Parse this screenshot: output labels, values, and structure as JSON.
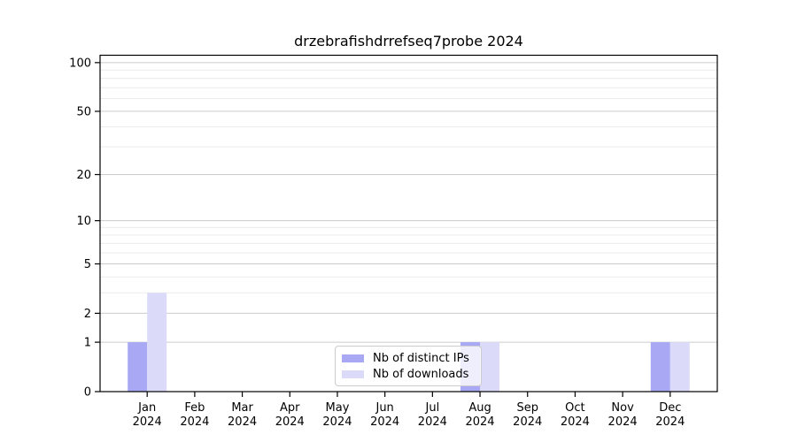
{
  "title": "drzebrafishdrrefseq7probe 2024",
  "chart_data": {
    "type": "bar",
    "title": "drzebrafishdrrefseq7probe 2024",
    "x_months": [
      "Jan",
      "Feb",
      "Mar",
      "Apr",
      "May",
      "Jun",
      "Jul",
      "Aug",
      "Sep",
      "Oct",
      "Nov",
      "Dec"
    ],
    "x_year": "2024",
    "series": [
      {
        "name": "Nb of distinct IPs",
        "color": "#a8a8f4",
        "values": [
          1,
          0,
          0,
          0,
          0,
          0,
          0,
          1,
          0,
          0,
          0,
          1
        ]
      },
      {
        "name": "Nb of downloads",
        "color": "#dbdbf9",
        "values": [
          3,
          0,
          0,
          0,
          0,
          0,
          0,
          1,
          0,
          0,
          0,
          1
        ]
      }
    ],
    "y_axis": {
      "scale": "log1p",
      "major_ticks": [
        0,
        1,
        2,
        5,
        10,
        20,
        50,
        100
      ],
      "minor_gridlines": [
        3,
        4,
        6,
        7,
        8,
        9,
        30,
        40,
        60,
        70,
        80,
        90
      ],
      "ylim": [
        0,
        111
      ]
    },
    "grid": {
      "major_color": "#cccccc",
      "minor_color": "#ececec"
    },
    "legend": {
      "position": "lower center"
    },
    "colors": {
      "spine": "#000000",
      "text": "#000000",
      "background": "#ffffff"
    }
  }
}
